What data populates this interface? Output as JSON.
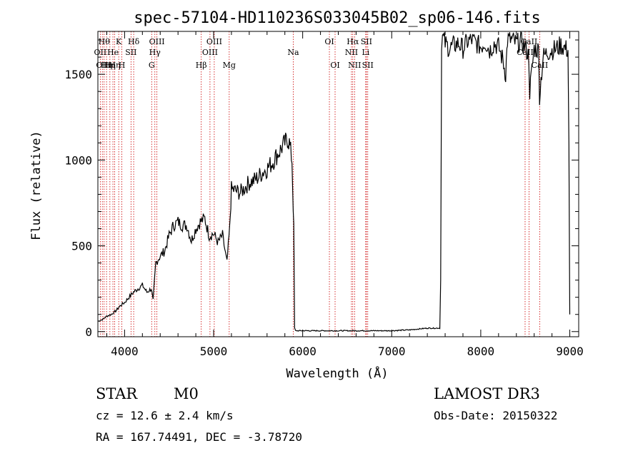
{
  "chart_data": {
    "type": "line",
    "title": "spec-57104-HD110236S033045B02_sp06-146.fits",
    "xlabel": "Wavelength (Å)",
    "ylabel": "Flux (relative)",
    "xlim": [
      3700,
      9100
    ],
    "ylim": [
      -30,
      1750
    ],
    "xticks": [
      4000,
      5000,
      6000,
      7000,
      8000,
      9000
    ],
    "yticks": [
      0,
      500,
      1000,
      1500
    ],
    "series": [
      {
        "name": "flux",
        "x": [
          3700,
          3750,
          3800,
          3850,
          3900,
          3950,
          4000,
          4050,
          4100,
          4150,
          4200,
          4250,
          4300,
          4320,
          4350,
          4400,
          4450,
          4500,
          4550,
          4600,
          4650,
          4700,
          4750,
          4800,
          4850,
          4900,
          4950,
          5000,
          5050,
          5100,
          5150,
          5180,
          5200,
          5250,
          5300,
          5350,
          5400,
          5450,
          5500,
          5550,
          5600,
          5650,
          5700,
          5750,
          5800,
          5830,
          5850,
          5880,
          5900,
          5910,
          5920,
          5930,
          6000,
          6500,
          7000,
          7200,
          7400,
          7500,
          7540,
          7550,
          7560,
          7570,
          7600,
          7650,
          7700,
          7750,
          7800,
          7850,
          7900,
          7950,
          8000,
          8050,
          8100,
          8150,
          8200,
          8250,
          8280,
          8300,
          8350,
          8400,
          8450,
          8500,
          8540,
          8550,
          8600,
          8650,
          8660,
          8700,
          8750,
          8800,
          8850,
          8900,
          8950,
          8980,
          8990,
          9000
        ],
        "y": [
          60,
          70,
          90,
          100,
          120,
          150,
          170,
          200,
          230,
          250,
          270,
          230,
          250,
          180,
          400,
          440,
          470,
          560,
          620,
          640,
          620,
          620,
          530,
          600,
          640,
          660,
          560,
          570,
          520,
          560,
          400,
          600,
          830,
          820,
          810,
          840,
          870,
          880,
          900,
          930,
          950,
          980,
          1020,
          1060,
          1100,
          1120,
          1100,
          1000,
          600,
          20,
          5,
          5,
          5,
          5,
          5,
          10,
          20,
          20,
          20,
          300,
          1700,
          1720,
          1680,
          1650,
          1670,
          1680,
          1650,
          1690,
          1700,
          1680,
          1660,
          1690,
          1640,
          1680,
          1660,
          1580,
          1500,
          1700,
          1700,
          1680,
          1690,
          1660,
          1600,
          1400,
          1650,
          1640,
          1380,
          1600,
          1630,
          1640,
          1650,
          1670,
          1650,
          1640,
          1100,
          100
        ]
      }
    ],
    "lines": [
      {
        "wave": 3727,
        "label": "OII",
        "row": 2
      },
      {
        "wave": 3750,
        "label": "OII",
        "row": 3
      },
      {
        "wave": 3770,
        "label": "Hθ",
        "row": 1
      },
      {
        "wave": 3797,
        "label": "Hη",
        "row": 3
      },
      {
        "wave": 3835,
        "label": "Hη",
        "row": 3
      },
      {
        "wave": 3869,
        "label": "He",
        "row": 2
      },
      {
        "wave": 3889,
        "label": "Hη",
        "row": 3
      },
      {
        "wave": 3934,
        "label": "K",
        "row": 1
      },
      {
        "wave": 3969,
        "label": "H",
        "row": 3
      },
      {
        "wave": 4072,
        "label": "SII",
        "row": 2
      },
      {
        "wave": 4102,
        "label": "Hδ",
        "row": 1
      },
      {
        "wave": 4304,
        "label": "G",
        "row": 3
      },
      {
        "wave": 4340,
        "label": "Hγ",
        "row": 2
      },
      {
        "wave": 4363,
        "label": "OIII",
        "row": 1
      },
      {
        "wave": 4861,
        "label": "Hβ",
        "row": 3
      },
      {
        "wave": 4959,
        "label": "OIII",
        "row": 2
      },
      {
        "wave": 5007,
        "label": "OIII",
        "row": 1
      },
      {
        "wave": 5175,
        "label": "Mg",
        "row": 3
      },
      {
        "wave": 5894,
        "label": "Na",
        "row": 2
      },
      {
        "wave": 6300,
        "label": "OI",
        "row": 1
      },
      {
        "wave": 6364,
        "label": "OI",
        "row": 3
      },
      {
        "wave": 6548,
        "label": "NII",
        "row": 2
      },
      {
        "wave": 6563,
        "label": "Hα",
        "row": 1
      },
      {
        "wave": 6583,
        "label": "NII",
        "row": 3
      },
      {
        "wave": 6708,
        "label": "Li",
        "row": 2
      },
      {
        "wave": 6716,
        "label": "SII",
        "row": 1
      },
      {
        "wave": 6731,
        "label": "SII",
        "row": 3
      },
      {
        "wave": 8498,
        "label": "CaII",
        "row": 2
      },
      {
        "wave": 8542,
        "label": "CaII",
        "row": 1
      },
      {
        "wave": 8662,
        "label": "CaII",
        "row": 3
      }
    ]
  },
  "info": {
    "class": "STAR",
    "subclass": "M0",
    "survey": "LAMOST DR3",
    "cz": "cz = 12.6 ± 2.4 km/s",
    "obs_date": "Obs-Date: 20150322",
    "coords": "RA = 167.74491, DEC =  -3.78720"
  },
  "colors": {
    "line_marker": "#cc0000",
    "spectrum": "#000000",
    "axes": "#000000"
  }
}
